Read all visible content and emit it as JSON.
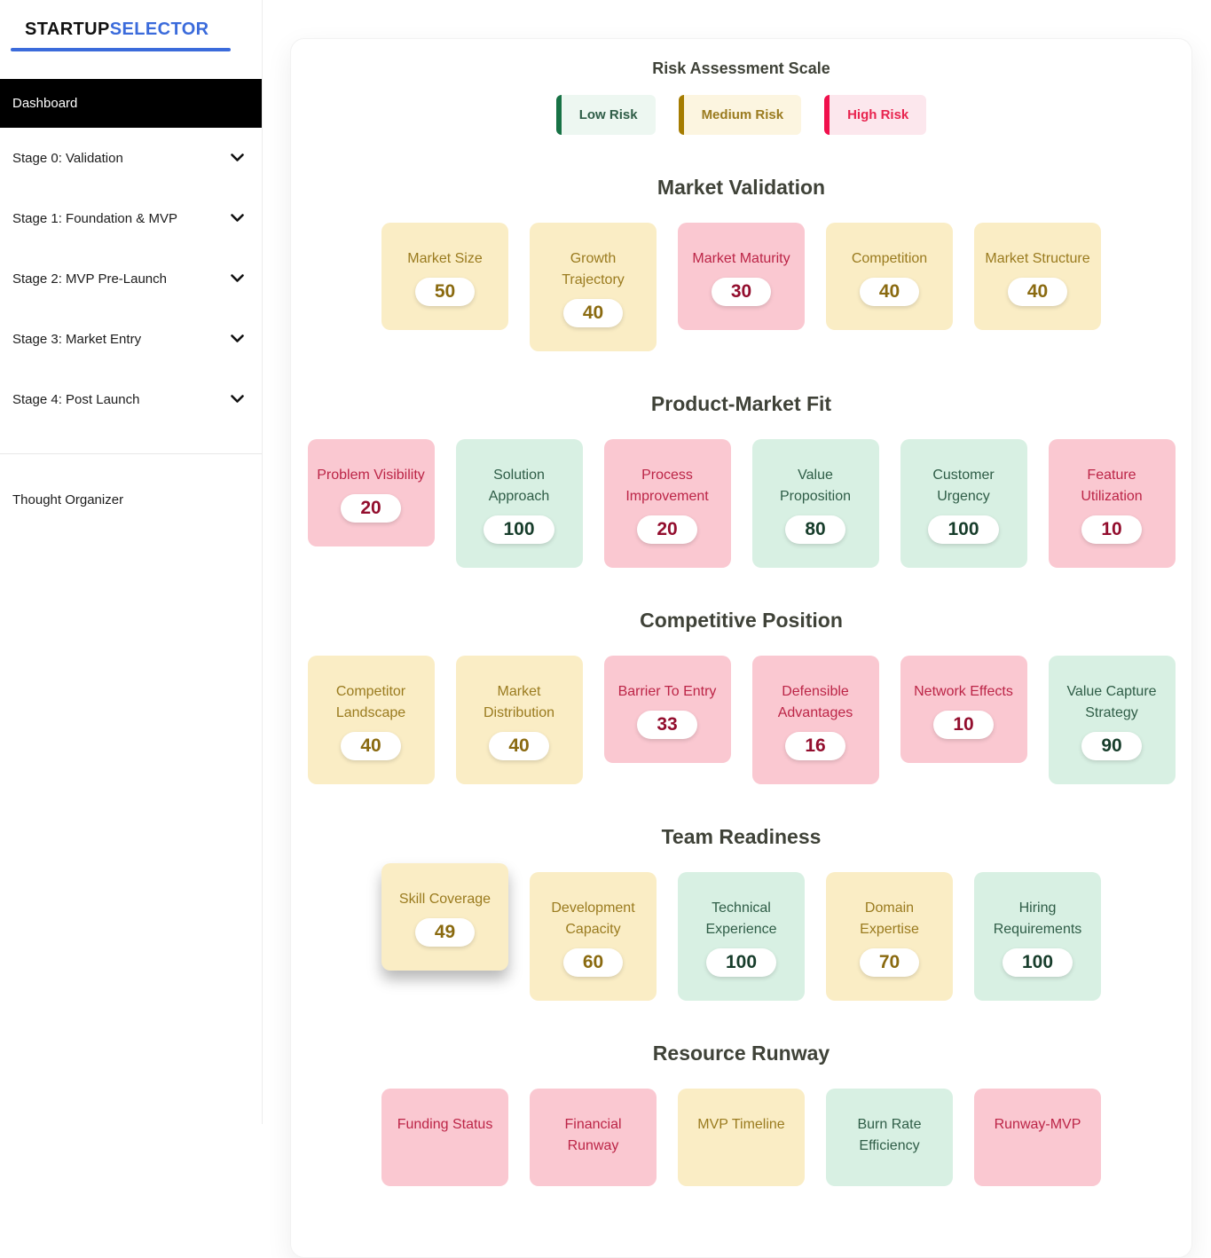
{
  "sidebar": {
    "logo": {
      "part1": "STARTUP",
      "part2": "SELECTOR"
    },
    "active_item": "Dashboard",
    "items": [
      {
        "label": "Stage 0: Validation"
      },
      {
        "label": "Stage 1: Foundation & MVP"
      },
      {
        "label": "Stage 2: MVP Pre-Launch"
      },
      {
        "label": "Stage 3: Market Entry"
      },
      {
        "label": "Stage 4: Post Launch"
      }
    ],
    "footer_item": "Thought Organizer"
  },
  "legend": {
    "title": "Risk Assessment Scale",
    "items": [
      {
        "label": "Low Risk",
        "risk": "low"
      },
      {
        "label": "Medium Risk",
        "risk": "medium"
      },
      {
        "label": "High Risk",
        "risk": "high"
      }
    ]
  },
  "colors": {
    "accent_blue": "#3B6BDB",
    "heading_text": "#3F4238",
    "low": {
      "bg": "#D8F0E3",
      "text": "#2F5D47",
      "value": "#173D2B",
      "legend_border": "#177245"
    },
    "medium": {
      "bg": "#FAEDC5",
      "text": "#9A7B1F",
      "value": "#8A6A10",
      "legend_border": "#A57C00"
    },
    "high": {
      "bg": "#FAC8D1",
      "text": "#BC2547",
      "value": "#930E2E",
      "legend_border": "#F0104C"
    }
  },
  "sections": [
    {
      "title": "Market Validation",
      "cards": [
        {
          "label": "Market Size",
          "value": "50",
          "risk": "medium"
        },
        {
          "label": "Growth Trajectory",
          "value": "40",
          "risk": "medium"
        },
        {
          "label": "Market Maturity",
          "value": "30",
          "risk": "high"
        },
        {
          "label": "Competition",
          "value": "40",
          "risk": "medium"
        },
        {
          "label": "Market Structure",
          "value": "40",
          "risk": "medium"
        }
      ]
    },
    {
      "title": "Product-Market Fit",
      "cards": [
        {
          "label": "Problem Visibility",
          "value": "20",
          "risk": "high"
        },
        {
          "label": "Solution Approach",
          "value": "100",
          "risk": "low"
        },
        {
          "label": "Process Improvement",
          "value": "20",
          "risk": "high"
        },
        {
          "label": "Value Proposition",
          "value": "80",
          "risk": "low"
        },
        {
          "label": "Customer Urgency",
          "value": "100",
          "risk": "low"
        },
        {
          "label": "Feature Utilization",
          "value": "10",
          "risk": "high"
        }
      ]
    },
    {
      "title": "Competitive Position",
      "cards": [
        {
          "label": "Competitor Landscape",
          "value": "40",
          "risk": "medium"
        },
        {
          "label": "Market Distribution",
          "value": "40",
          "risk": "medium"
        },
        {
          "label": "Barrier To Entry",
          "value": "33",
          "risk": "high"
        },
        {
          "label": "Defensible Advantages",
          "value": "16",
          "risk": "high"
        },
        {
          "label": "Network Effects",
          "value": "10",
          "risk": "high"
        },
        {
          "label": "Value Capture Strategy",
          "value": "90",
          "risk": "low"
        }
      ]
    },
    {
      "title": "Team Readiness",
      "cards": [
        {
          "label": "Skill Coverage",
          "value": "49",
          "risk": "medium",
          "elevated": true
        },
        {
          "label": "Development Capacity",
          "value": "60",
          "risk": "medium"
        },
        {
          "label": "Technical Experience",
          "value": "100",
          "risk": "low"
        },
        {
          "label": "Domain Expertise",
          "value": "70",
          "risk": "medium"
        },
        {
          "label": "Hiring Requirements",
          "value": "100",
          "risk": "low"
        }
      ]
    },
    {
      "title": "Resource Runway",
      "cards": [
        {
          "label": "Funding Status",
          "risk": "high"
        },
        {
          "label": "Financial Runway",
          "risk": "high"
        },
        {
          "label": "MVP Timeline",
          "risk": "medium"
        },
        {
          "label": "Burn Rate Efficiency",
          "risk": "low"
        },
        {
          "label": "Runway-MVP",
          "risk": "high"
        }
      ]
    }
  ]
}
